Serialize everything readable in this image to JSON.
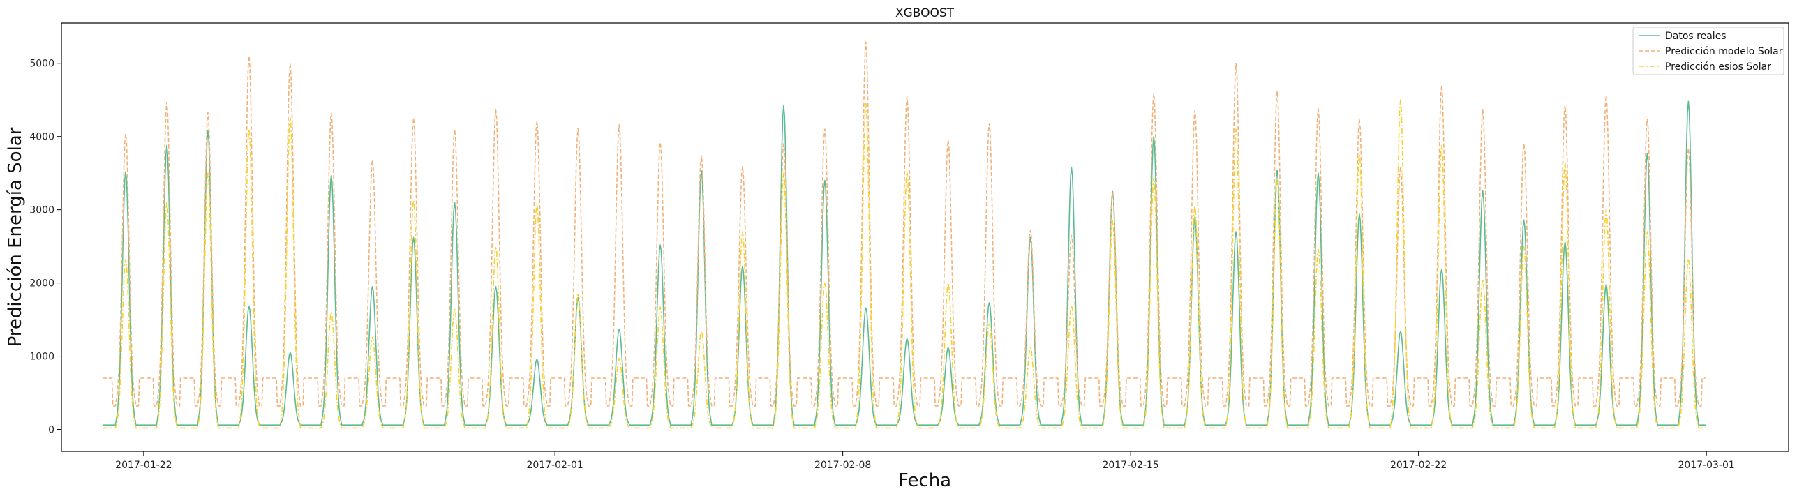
{
  "chart_data": {
    "type": "line",
    "title": "XGBOOST",
    "xlabel": "Fecha",
    "ylabel": "Predicción Energía Solar",
    "xlim": [
      "2017-01-20",
      "2017-03-03"
    ],
    "ylim": [
      -300,
      5550
    ],
    "xticks": [
      "2017-01-22",
      "2017-02-01",
      "2017-02-08",
      "2017-02-15",
      "2017-02-22",
      "2017-03-01"
    ],
    "yticks": [
      0,
      1000,
      2000,
      3000,
      4000,
      5000
    ],
    "legend_position": "top-right",
    "grid": false,
    "day_start": "2017-01-21",
    "series": [
      {
        "name": "Datos reales",
        "color": "#5dbb93",
        "style": "solid",
        "daily_peaks": [
          3520,
          3880,
          4080,
          1680,
          1050,
          3470,
          1950,
          2620,
          3100,
          1950,
          960,
          1800,
          1370,
          2520,
          3530,
          2230,
          4420,
          3400,
          1660,
          1240,
          1120,
          1730,
          2620,
          3580,
          3250,
          4000,
          2900,
          2700,
          3540,
          3500,
          2940,
          1340,
          2190,
          3260,
          2860,
          2560,
          1980,
          3770,
          4480
        ]
      },
      {
        "name": "Predicción modelo Solar",
        "color": "#f0b27a",
        "style": "dashed",
        "daily_peaks": [
          4030,
          4470,
          4330,
          5100,
          4990,
          4320,
          3680,
          4250,
          4100,
          4370,
          4210,
          4110,
          4160,
          3920,
          3740,
          3590,
          3900,
          4100,
          5290,
          4540,
          3950,
          4180,
          2720,
          2650,
          3250,
          4580,
          4360,
          5000,
          4620,
          4380,
          4230,
          3580,
          4700,
          4370,
          3900,
          4430,
          4560,
          4240,
          3840
        ]
      },
      {
        "name": "Predicción esios Solar",
        "color": "#f7d22e",
        "style": "dashdot",
        "daily_peaks": [
          2320,
          3100,
          3500,
          4100,
          4270,
          1600,
          1260,
          3130,
          1650,
          2500,
          3080,
          1860,
          970,
          1670,
          1350,
          2700,
          3500,
          2000,
          4450,
          3520,
          2000,
          1440,
          1120,
          1700,
          2850,
          3440,
          3060,
          4100,
          3400,
          2460,
          3760,
          4500,
          3880,
          2050,
          2500,
          3640,
          3000,
          2700,
          2330
        ]
      }
    ]
  }
}
